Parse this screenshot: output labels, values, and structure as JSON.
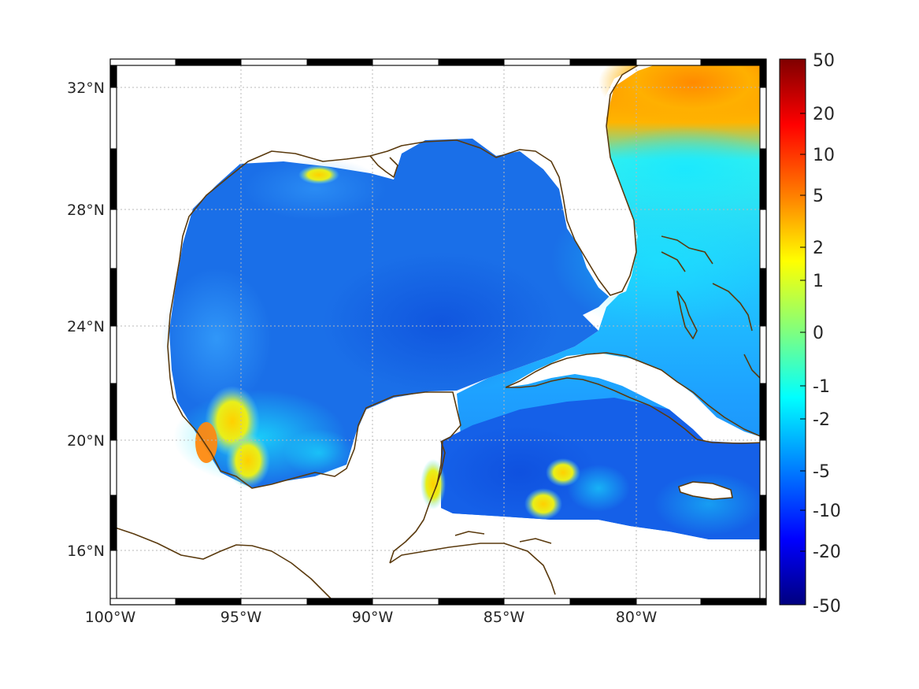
{
  "map": {
    "extent": {
      "lon": [
        -100,
        -75
      ],
      "lat": [
        14.3,
        33
      ]
    },
    "lon_ticks": [
      {
        "value": -100,
        "label": "100°W"
      },
      {
        "value": -95,
        "label": "95°W"
      },
      {
        "value": -90,
        "label": "90°W"
      },
      {
        "value": -85,
        "label": "85°W"
      },
      {
        "value": -80,
        "label": "80°W"
      }
    ],
    "lat_ticks": [
      {
        "value": 32,
        "label": "32°N"
      },
      {
        "value": 28,
        "label": "28°N"
      },
      {
        "value": 24,
        "label": "24°N"
      },
      {
        "value": 20,
        "label": "20°N"
      },
      {
        "value": 16,
        "label": "16°N"
      }
    ],
    "grid": true,
    "colors": {
      "coastline": "#5a3a0e",
      "grid": "#b8b8b8",
      "frame_dark": "#000000",
      "frame_light": "#ffffff",
      "ocean_base": "#1a6fe8"
    }
  },
  "colorbar": {
    "labels": [
      "50",
      "20",
      "10",
      "5",
      "2",
      "1",
      "0",
      "-1",
      "-2",
      "-5",
      "-10",
      "-20",
      "-50"
    ],
    "colormap": "jet",
    "colors": [
      "#7f0000",
      "#ff0000",
      "#ff7f00",
      "#ffff00",
      "#7fff7f",
      "#00ffff",
      "#007fff",
      "#0000ff",
      "#00007f"
    ]
  }
}
